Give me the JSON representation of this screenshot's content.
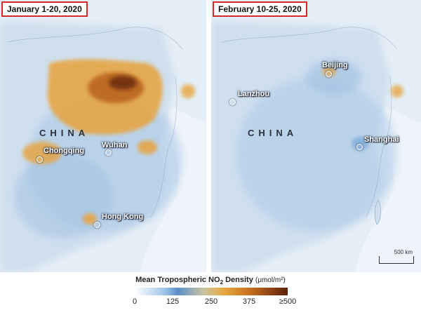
{
  "legend": {
    "title_main": "Mean Tropospheric NO",
    "title_sub": "2",
    "title_rest": " Density",
    "unit": "(μmol/m²)",
    "ticks": [
      "0",
      "125",
      "250",
      "375",
      "≥500"
    ],
    "colors": [
      "#ffffff",
      "#5b8fcc",
      "#e7a942",
      "#c9711e",
      "#5a2208"
    ]
  },
  "left_panel": {
    "title": "January 1-20, 2020",
    "country": "CHINA",
    "cities": [
      "Chongqing",
      "Wuhan",
      "Hong Kong"
    ]
  },
  "right_panel": {
    "title": "February 10-25, 2020",
    "country": "CHINA",
    "cities": [
      "Beijing",
      "Lanzhou",
      "Shanghai"
    ],
    "scale_label": "500 km"
  }
}
